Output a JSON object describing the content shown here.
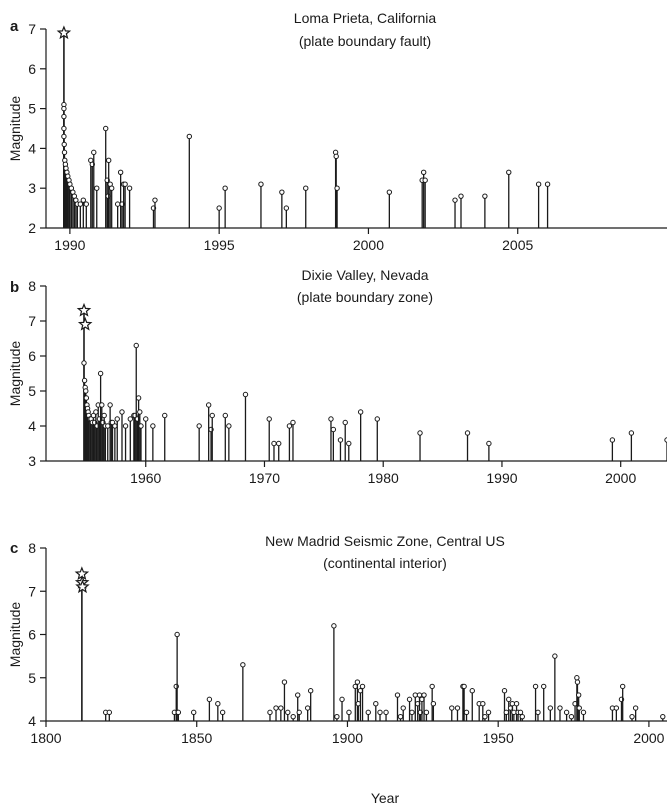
{
  "xlabel": "Year",
  "chart_data": [
    {
      "type": "stem",
      "panel": "a",
      "title": "Loma Prieta, California",
      "subtitle": "(plate boundary fault)",
      "ylabel": "Magnitude",
      "xlabel": "",
      "xlim": [
        1989.2,
        2010.0
      ],
      "ylim": [
        2,
        7
      ],
      "xticks": [
        1990,
        1995,
        2000,
        2005
      ],
      "yticks": [
        2,
        3,
        4,
        5,
        6,
        7
      ],
      "mainshocks": [
        {
          "x": 1989.8,
          "y": 6.9
        }
      ],
      "events": [
        {
          "x": 1989.8,
          "y": 5.1
        },
        {
          "x": 1989.8,
          "y": 5.0
        },
        {
          "x": 1989.8,
          "y": 4.8
        },
        {
          "x": 1989.8,
          "y": 4.5
        },
        {
          "x": 1989.8,
          "y": 4.3
        },
        {
          "x": 1989.81,
          "y": 4.1
        },
        {
          "x": 1989.82,
          "y": 3.9
        },
        {
          "x": 1989.83,
          "y": 3.7
        },
        {
          "x": 1989.85,
          "y": 3.6
        },
        {
          "x": 1989.87,
          "y": 3.5
        },
        {
          "x": 1989.9,
          "y": 3.4
        },
        {
          "x": 1989.93,
          "y": 3.3
        },
        {
          "x": 1989.97,
          "y": 3.2
        },
        {
          "x": 1990.0,
          "y": 3.1
        },
        {
          "x": 1990.05,
          "y": 3.0
        },
        {
          "x": 1990.1,
          "y": 2.9
        },
        {
          "x": 1990.15,
          "y": 2.8
        },
        {
          "x": 1990.2,
          "y": 2.7
        },
        {
          "x": 1990.25,
          "y": 2.6
        },
        {
          "x": 1990.35,
          "y": 2.6
        },
        {
          "x": 1990.45,
          "y": 2.7
        },
        {
          "x": 1990.55,
          "y": 2.6
        },
        {
          "x": 1990.7,
          "y": 3.7
        },
        {
          "x": 1990.75,
          "y": 3.6
        },
        {
          "x": 1990.8,
          "y": 3.9
        },
        {
          "x": 1990.9,
          "y": 3.0
        },
        {
          "x": 1991.2,
          "y": 4.5
        },
        {
          "x": 1991.25,
          "y": 3.2
        },
        {
          "x": 1991.28,
          "y": 2.8
        },
        {
          "x": 1991.3,
          "y": 3.7
        },
        {
          "x": 1991.35,
          "y": 3.1
        },
        {
          "x": 1991.4,
          "y": 3.0
        },
        {
          "x": 1991.6,
          "y": 2.6
        },
        {
          "x": 1991.7,
          "y": 3.4
        },
        {
          "x": 1991.75,
          "y": 2.6
        },
        {
          "x": 1991.8,
          "y": 3.1
        },
        {
          "x": 1991.85,
          "y": 3.1
        },
        {
          "x": 1992.0,
          "y": 3.0
        },
        {
          "x": 1992.8,
          "y": 2.5
        },
        {
          "x": 1992.85,
          "y": 2.7
        },
        {
          "x": 1994.0,
          "y": 4.3
        },
        {
          "x": 1995.0,
          "y": 2.5
        },
        {
          "x": 1995.2,
          "y": 3.0
        },
        {
          "x": 1996.4,
          "y": 3.1
        },
        {
          "x": 1997.1,
          "y": 2.9
        },
        {
          "x": 1997.25,
          "y": 2.5
        },
        {
          "x": 1997.9,
          "y": 3.0
        },
        {
          "x": 1998.9,
          "y": 3.9
        },
        {
          "x": 1998.92,
          "y": 3.8
        },
        {
          "x": 1998.95,
          "y": 3.0
        },
        {
          "x": 2000.7,
          "y": 2.9
        },
        {
          "x": 2001.8,
          "y": 3.2
        },
        {
          "x": 2001.85,
          "y": 3.4
        },
        {
          "x": 2001.9,
          "y": 3.2
        },
        {
          "x": 2002.9,
          "y": 2.7
        },
        {
          "x": 2003.1,
          "y": 2.8
        },
        {
          "x": 2003.9,
          "y": 2.8
        },
        {
          "x": 2004.7,
          "y": 3.4
        },
        {
          "x": 2005.7,
          "y": 3.1
        },
        {
          "x": 2006.0,
          "y": 3.1
        }
      ]
    },
    {
      "type": "stem",
      "panel": "b",
      "title": "Dixie Valley, Nevada",
      "subtitle": "(plate boundary zone)",
      "ylabel": "Magnitude",
      "xlabel": "",
      "xlim": [
        1951.6,
        2003.9
      ],
      "ylim": [
        3,
        8
      ],
      "xticks": [
        1960,
        1970,
        1980,
        1990,
        2000
      ],
      "yticks": [
        3,
        4,
        5,
        6,
        7,
        8
      ],
      "mainshocks": [
        {
          "x": 1954.8,
          "y": 7.3
        },
        {
          "x": 1954.9,
          "y": 6.9
        }
      ],
      "events": [
        {
          "x": 1954.8,
          "y": 5.8
        },
        {
          "x": 1954.85,
          "y": 5.3
        },
        {
          "x": 1954.9,
          "y": 5.1
        },
        {
          "x": 1954.95,
          "y": 5.0
        },
        {
          "x": 1955.0,
          "y": 4.8
        },
        {
          "x": 1955.05,
          "y": 4.6
        },
        {
          "x": 1955.1,
          "y": 4.5
        },
        {
          "x": 1955.15,
          "y": 4.4
        },
        {
          "x": 1955.2,
          "y": 4.3
        },
        {
          "x": 1955.3,
          "y": 4.2
        },
        {
          "x": 1955.4,
          "y": 4.2
        },
        {
          "x": 1955.5,
          "y": 4.1
        },
        {
          "x": 1955.6,
          "y": 4.3
        },
        {
          "x": 1955.7,
          "y": 4.1
        },
        {
          "x": 1955.8,
          "y": 4.4
        },
        {
          "x": 1955.9,
          "y": 4.0
        },
        {
          "x": 1956.0,
          "y": 4.6
        },
        {
          "x": 1956.1,
          "y": 4.2
        },
        {
          "x": 1956.2,
          "y": 5.5
        },
        {
          "x": 1956.3,
          "y": 4.6
        },
        {
          "x": 1956.4,
          "y": 4.1
        },
        {
          "x": 1956.5,
          "y": 4.3
        },
        {
          "x": 1956.6,
          "y": 4.0
        },
        {
          "x": 1956.8,
          "y": 4.0
        },
        {
          "x": 1957.0,
          "y": 4.6
        },
        {
          "x": 1957.1,
          "y": 4.1
        },
        {
          "x": 1957.2,
          "y": 4.1
        },
        {
          "x": 1957.4,
          "y": 4.0
        },
        {
          "x": 1957.6,
          "y": 4.2
        },
        {
          "x": 1958.0,
          "y": 4.4
        },
        {
          "x": 1958.3,
          "y": 4.0
        },
        {
          "x": 1958.7,
          "y": 4.2
        },
        {
          "x": 1959.0,
          "y": 4.3
        },
        {
          "x": 1959.1,
          "y": 4.3
        },
        {
          "x": 1959.2,
          "y": 6.3
        },
        {
          "x": 1959.3,
          "y": 4.2
        },
        {
          "x": 1959.4,
          "y": 4.8
        },
        {
          "x": 1959.5,
          "y": 4.4
        },
        {
          "x": 1959.6,
          "y": 4.0
        },
        {
          "x": 1960.0,
          "y": 4.2
        },
        {
          "x": 1960.6,
          "y": 4.0
        },
        {
          "x": 1961.6,
          "y": 4.3
        },
        {
          "x": 1964.5,
          "y": 4.0
        },
        {
          "x": 1965.3,
          "y": 4.6
        },
        {
          "x": 1965.5,
          "y": 3.9
        },
        {
          "x": 1965.6,
          "y": 4.3
        },
        {
          "x": 1966.7,
          "y": 4.3
        },
        {
          "x": 1967.0,
          "y": 4.0
        },
        {
          "x": 1968.4,
          "y": 4.9
        },
        {
          "x": 1970.4,
          "y": 4.2
        },
        {
          "x": 1970.8,
          "y": 3.5
        },
        {
          "x": 1971.2,
          "y": 3.5
        },
        {
          "x": 1972.1,
          "y": 4.0
        },
        {
          "x": 1972.4,
          "y": 4.1
        },
        {
          "x": 1975.6,
          "y": 4.2
        },
        {
          "x": 1975.8,
          "y": 3.9
        },
        {
          "x": 1976.4,
          "y": 3.6
        },
        {
          "x": 1976.8,
          "y": 4.1
        },
        {
          "x": 1977.1,
          "y": 3.5
        },
        {
          "x": 1978.1,
          "y": 4.4
        },
        {
          "x": 1979.5,
          "y": 4.2
        },
        {
          "x": 1983.1,
          "y": 3.8
        },
        {
          "x": 1987.1,
          "y": 3.8
        },
        {
          "x": 1988.9,
          "y": 3.5
        },
        {
          "x": 1999.3,
          "y": 3.6
        },
        {
          "x": 2000.9,
          "y": 3.8
        },
        {
          "x": 2003.9,
          "y": 3.6
        }
      ]
    },
    {
      "type": "stem",
      "panel": "c",
      "title": "New Madrid Seismic Zone, Central US",
      "subtitle": "(continental interior)",
      "ylabel": "Magnitude",
      "xlabel": "Year",
      "xlim": [
        1800,
        2006
      ],
      "ylim": [
        4,
        8
      ],
      "xticks": [
        1800,
        1850,
        1900,
        1950,
        2000
      ],
      "yticks": [
        4,
        5,
        6,
        7,
        8
      ],
      "mainshocks": [
        {
          "x": 1811.9,
          "y": 7.4
        },
        {
          "x": 1812.0,
          "y": 7.2
        },
        {
          "x": 1812.1,
          "y": 7.1
        }
      ],
      "events": [
        {
          "x": 1819.8,
          "y": 4.2
        },
        {
          "x": 1821.0,
          "y": 4.2
        },
        {
          "x": 1842.6,
          "y": 4.2
        },
        {
          "x": 1843.2,
          "y": 4.8
        },
        {
          "x": 1843.5,
          "y": 6.0
        },
        {
          "x": 1843.9,
          "y": 4.2
        },
        {
          "x": 1849.0,
          "y": 4.2
        },
        {
          "x": 1854.2,
          "y": 4.5
        },
        {
          "x": 1857.0,
          "y": 4.4
        },
        {
          "x": 1858.6,
          "y": 4.2
        },
        {
          "x": 1865.3,
          "y": 5.3
        },
        {
          "x": 1874.3,
          "y": 4.2
        },
        {
          "x": 1876.3,
          "y": 4.3
        },
        {
          "x": 1877.9,
          "y": 4.3
        },
        {
          "x": 1879.1,
          "y": 4.9
        },
        {
          "x": 1880.2,
          "y": 4.2
        },
        {
          "x": 1882.0,
          "y": 4.1
        },
        {
          "x": 1883.5,
          "y": 4.6
        },
        {
          "x": 1884.0,
          "y": 4.2
        },
        {
          "x": 1886.8,
          "y": 4.3
        },
        {
          "x": 1887.8,
          "y": 4.7
        },
        {
          "x": 1895.5,
          "y": 6.2
        },
        {
          "x": 1896.5,
          "y": 4.1
        },
        {
          "x": 1898.2,
          "y": 4.5
        },
        {
          "x": 1900.5,
          "y": 4.2
        },
        {
          "x": 1902.6,
          "y": 4.8
        },
        {
          "x": 1903.3,
          "y": 4.9
        },
        {
          "x": 1903.6,
          "y": 4.4
        },
        {
          "x": 1904.3,
          "y": 4.7
        },
        {
          "x": 1905.0,
          "y": 4.8
        },
        {
          "x": 1906.9,
          "y": 4.2
        },
        {
          "x": 1909.4,
          "y": 4.4
        },
        {
          "x": 1910.8,
          "y": 4.2
        },
        {
          "x": 1912.8,
          "y": 4.2
        },
        {
          "x": 1916.6,
          "y": 4.6
        },
        {
          "x": 1917.6,
          "y": 4.1
        },
        {
          "x": 1918.5,
          "y": 4.3
        },
        {
          "x": 1920.6,
          "y": 4.5
        },
        {
          "x": 1921.4,
          "y": 4.2
        },
        {
          "x": 1922.5,
          "y": 4.6
        },
        {
          "x": 1923.3,
          "y": 4.4
        },
        {
          "x": 1923.9,
          "y": 4.6
        },
        {
          "x": 1924.2,
          "y": 4.2
        },
        {
          "x": 1924.7,
          "y": 4.5
        },
        {
          "x": 1925.4,
          "y": 4.6
        },
        {
          "x": 1926.2,
          "y": 4.2
        },
        {
          "x": 1928.1,
          "y": 4.8
        },
        {
          "x": 1928.5,
          "y": 4.4
        },
        {
          "x": 1934.6,
          "y": 4.3
        },
        {
          "x": 1936.5,
          "y": 4.3
        },
        {
          "x": 1938.3,
          "y": 4.8
        },
        {
          "x": 1938.7,
          "y": 4.8
        },
        {
          "x": 1939.5,
          "y": 4.2
        },
        {
          "x": 1941.4,
          "y": 4.7
        },
        {
          "x": 1943.7,
          "y": 4.4
        },
        {
          "x": 1944.9,
          "y": 4.4
        },
        {
          "x": 1945.6,
          "y": 4.1
        },
        {
          "x": 1946.8,
          "y": 4.2
        },
        {
          "x": 1952.1,
          "y": 4.7
        },
        {
          "x": 1952.7,
          "y": 4.2
        },
        {
          "x": 1953.5,
          "y": 4.5
        },
        {
          "x": 1954.1,
          "y": 4.3
        },
        {
          "x": 1954.7,
          "y": 4.4
        },
        {
          "x": 1955.2,
          "y": 4.2
        },
        {
          "x": 1956.1,
          "y": 4.4
        },
        {
          "x": 1956.6,
          "y": 4.2
        },
        {
          "x": 1957.4,
          "y": 4.2
        },
        {
          "x": 1958.0,
          "y": 4.1
        },
        {
          "x": 1962.4,
          "y": 4.8
        },
        {
          "x": 1963.2,
          "y": 4.2
        },
        {
          "x": 1965.1,
          "y": 4.8
        },
        {
          "x": 1967.3,
          "y": 4.3
        },
        {
          "x": 1968.8,
          "y": 5.5
        },
        {
          "x": 1970.5,
          "y": 4.3
        },
        {
          "x": 1972.7,
          "y": 4.2
        },
        {
          "x": 1974.3,
          "y": 4.1
        },
        {
          "x": 1975.5,
          "y": 4.4
        },
        {
          "x": 1976.1,
          "y": 5.0
        },
        {
          "x": 1976.3,
          "y": 4.9
        },
        {
          "x": 1976.7,
          "y": 4.6
        },
        {
          "x": 1976.9,
          "y": 4.3
        },
        {
          "x": 1978.3,
          "y": 4.2
        },
        {
          "x": 1987.9,
          "y": 4.3
        },
        {
          "x": 1989.2,
          "y": 4.3
        },
        {
          "x": 1990.9,
          "y": 4.5
        },
        {
          "x": 1991.3,
          "y": 4.8
        },
        {
          "x": 1994.4,
          "y": 4.1
        },
        {
          "x": 1995.6,
          "y": 4.3
        },
        {
          "x": 2004.6,
          "y": 4.1
        }
      ]
    }
  ]
}
